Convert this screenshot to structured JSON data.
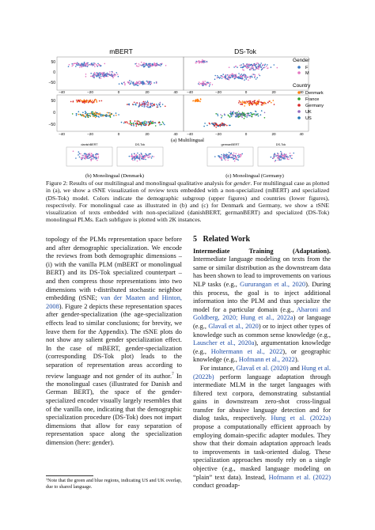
{
  "figure": {
    "multilingual_title_left": "mBERT",
    "multilingual_title_right": "DS-Tok",
    "legend_gender_title": "Gender",
    "legend_gender": [
      {
        "label": "F",
        "color": "#3a78c2"
      },
      {
        "label": "M",
        "color": "#e377c2"
      }
    ],
    "legend_country_title": "Country",
    "legend_country": [
      {
        "label": "Denmark",
        "color": "#ff7f0e"
      },
      {
        "label": "France",
        "color": "#2ca02c"
      },
      {
        "label": "Germany",
        "color": "#d62728"
      },
      {
        "label": "UK",
        "color": "#9467bd"
      },
      {
        "label": "US",
        "color": "#1f77b4"
      }
    ],
    "y_ticks_top": [
      "50",
      "0",
      "−50"
    ],
    "y_ticks_bottom": [
      "50",
      "0",
      "−50"
    ],
    "x_ticks": [
      "−40",
      "−20",
      "0",
      "20",
      "40"
    ],
    "sub_a": "(a) Multilingual",
    "mono_titles": [
      "danishBERT",
      "DS-Tok",
      "germanBERT",
      "DS-Tok"
    ],
    "sub_b": "(b) Monolingual (Denmark)",
    "sub_c": "(c) Monolingual (Germany)"
  },
  "caption": {
    "lead": "Figure 2: Results of our multilingual and monolingual qualitative analysis for ",
    "gender_word": "gender",
    "rest": ". For multilingual case as plotted in (a), we show a tSNE visualization of review texts embedded with a non-specialized (mBERT) and specialized (DS-Tok) model. Colors indicate the demographic subgroup (upper figures) and countries (lower figures), respectively. For monolingual case as illustrated in (b) and (c) for Denmark and Germany, we show a tSNE visualization of texts embedded with non-specialized (danishBERT, germanBERT) and specialized (DS-Tok) monolingual PLMs. Each subfigure is plotted with 2K instances."
  },
  "left": {
    "p1_a": "topology of the PLMs representation space before and after demographic specialization. We encode the reviews from both demographic dimensions – (i) with the vanilla PLM (mBERT or monolingual BERT) and its DS-Tok specialized counterpart – and then compress those representations into two dimensions with t-distributed stochastic neighbor embedding (tSNE; ",
    "p1_cite": "van der Maaten and Hinton, 2008",
    "p1_b": "). Figure 2 depicts these representation spaces after gender-specialization (the age-specialization effects lead to similar conclusions; for brevity, we leave them for the Appendix). The tSNE plots do not show any salient gender specialization effect. In the case of mBERT, gender-specialization (corresponding DS-Tok plot) leads to the separation of representation areas according to review language and not gender of its author.",
    "p1_fn": "7",
    "p1_c": " In the monolingual cases (illustrated for Danish and German BERT), the space of the gender-specialized encoder visually largely resembles that of the vanilla one, indicating that the demographic specialization procedure (DS-Tok) does not impart dimensions that allow for easy separation of representation space along the specialization dimension (here: gender).",
    "footnote": "⁷Note that the green and blue regions, indicating US and UK overlap, due to shared language."
  },
  "right": {
    "section_num": "5",
    "section_title": "Related Work",
    "h1": "Intermediate Training (Adaptation).",
    "p1_a": " Intermediate language modeling on texts from the same or similar distribution as the downstream data has been shown to lead to improvements on various NLP tasks (e.g., ",
    "c1": "Gururangan et al., 2020",
    "p1_b": "). During this process, the goal is to inject additional information into the PLM and thus specialize the model for a particular domain (e.g., ",
    "c2": "Aharoni and Goldberg, 2020; Hung et al., 2022a",
    "p1_c": ") or language (e.g., ",
    "c3": "Glavaš et al., 2020",
    "p1_d": ") or to inject other types of knowledge such as common sense knowledge (e.g., ",
    "c4": "Lauscher et al., 2020a",
    "p1_e": "), argumentation knowledge (e.g., ",
    "c5": "Holtermann et al., 2022",
    "p1_f": "), or geographic knowledge (e.g., ",
    "c6": "Hofmann et al., 2022",
    "p1_g": ").",
    "p2_a": "For instance, ",
    "c7": "Glavaš et al. (2020)",
    "p2_b": " and ",
    "c8": "Hung et al. (2022b)",
    "p2_c": " perform language adaptation through intermediate MLM in the target languages with filtered text corpora, demonstrating substantial gains in downstream zero-shot cross-lingual transfer for abusive language detection and for dialog tasks, respectively. ",
    "c9": "Hung et al. (2022a)",
    "p2_d": " propose a computationally efficient approach by employing domain-specific adapter modules. They show that their domain adaptation approach leads to improvements in task-oriented dialog. These specialization approaches mostly rely on a single objective (e.g., masked language modeling on “plain” text data). Instead, ",
    "c10": "Hofmann et al. (2022)",
    "p2_e": " conduct geoadap-"
  }
}
